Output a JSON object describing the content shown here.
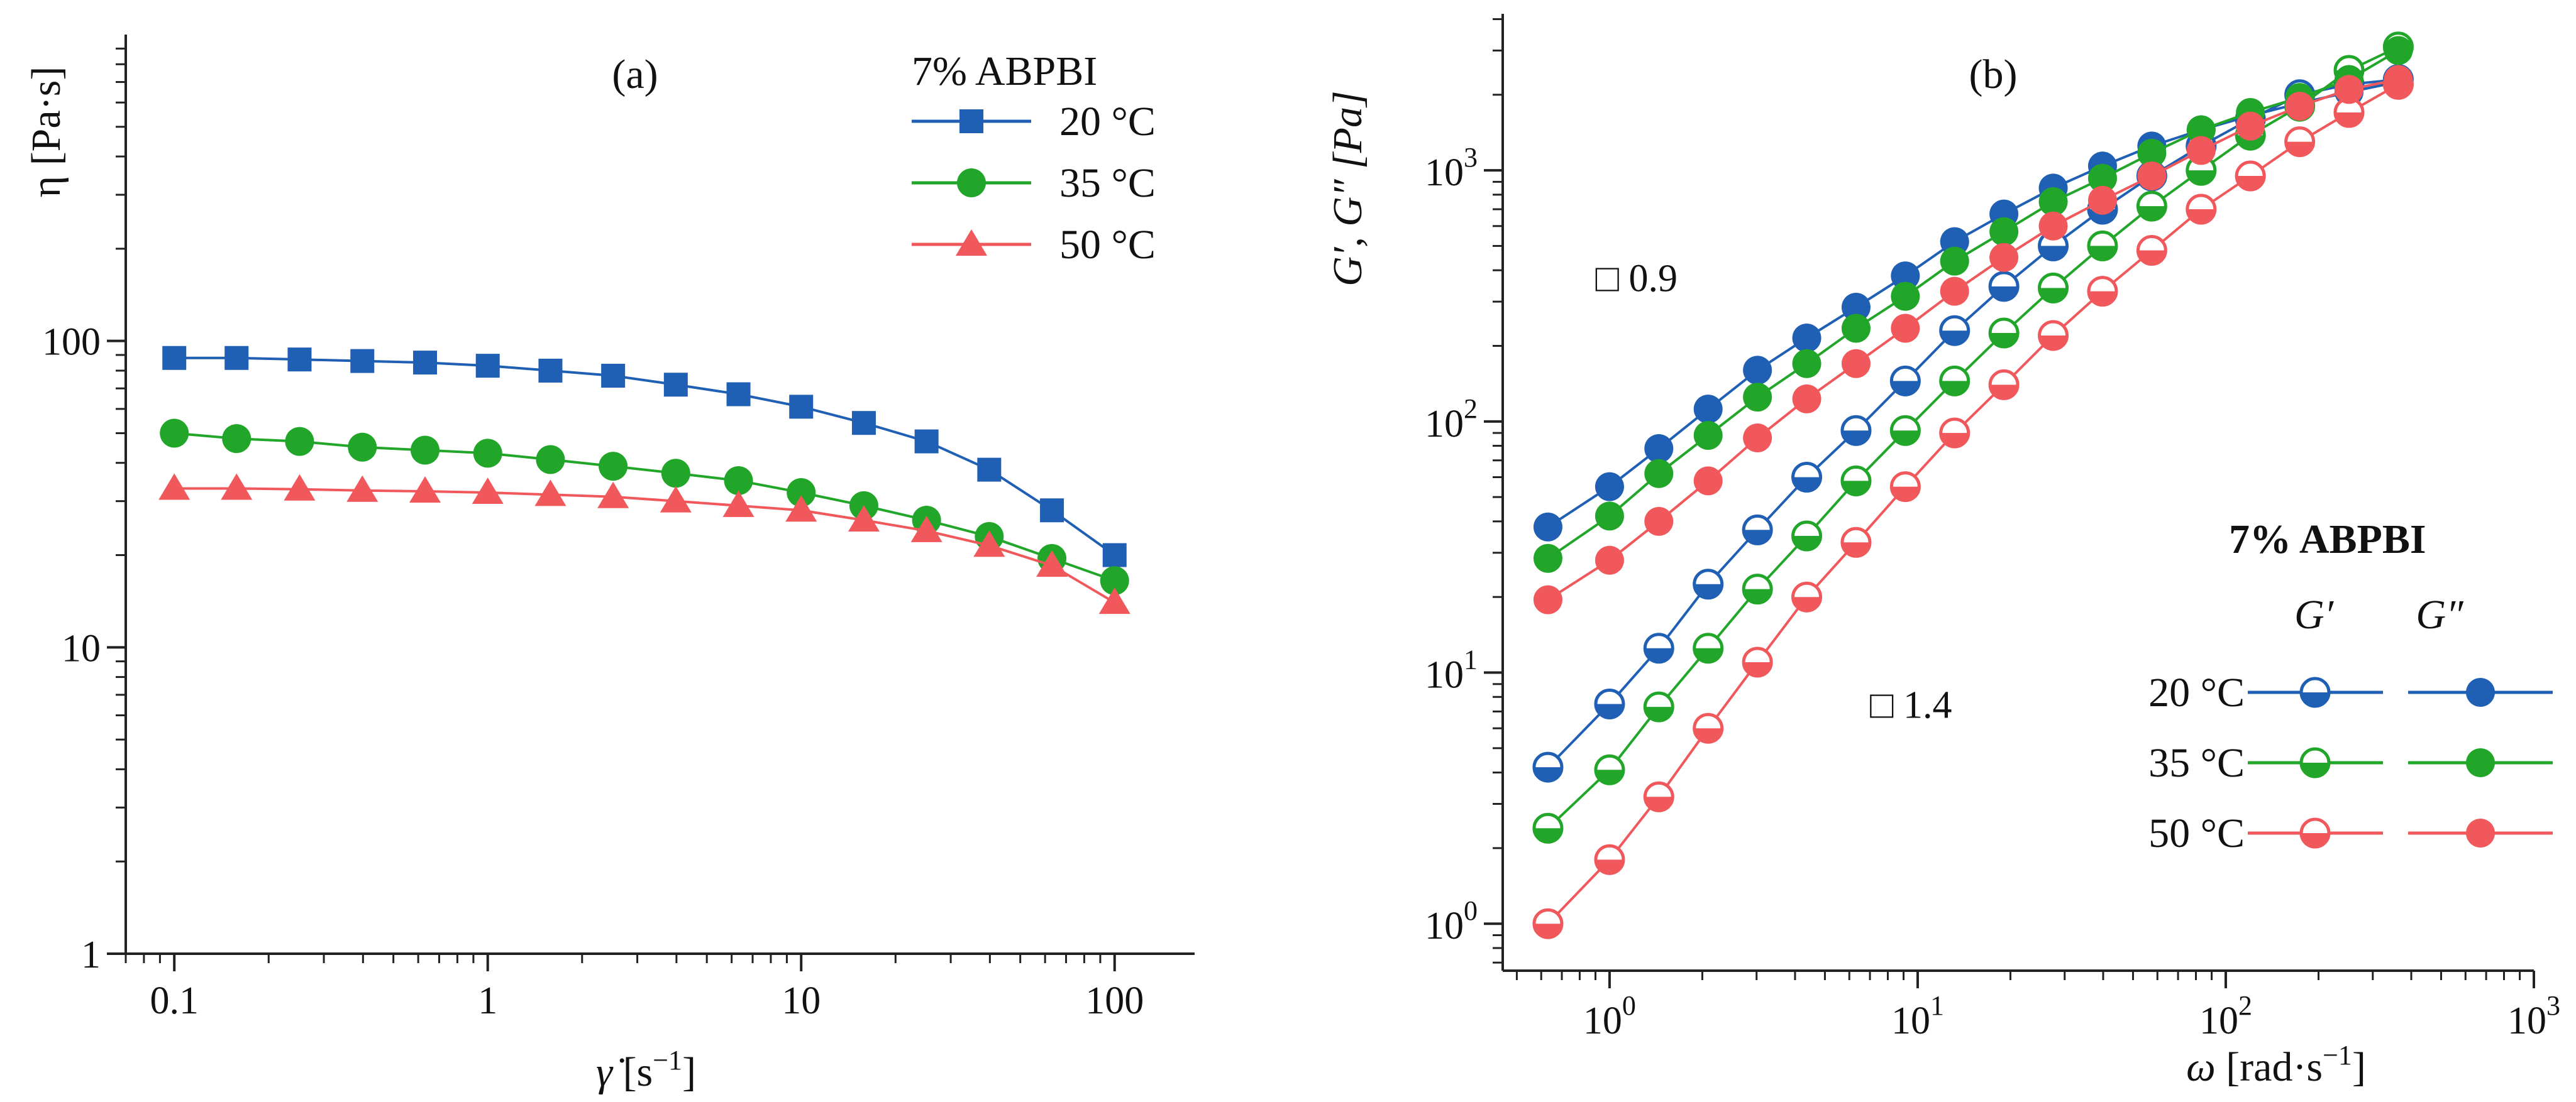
{
  "chart_data": [
    {
      "type": "line",
      "panel_label": "(a)",
      "title": "",
      "xlabel_symbol": "γ̇",
      "xlabel_unit": " [s",
      "xlabel_sup": "−1",
      "xlabel_close": "]",
      "ylabel": "η [Pa·s]",
      "xscale": "log",
      "yscale": "log",
      "xlim": [
        0.07,
        180
      ],
      "ylim": [
        1,
        1000
      ],
      "xticks": [
        0.1,
        1,
        10,
        100
      ],
      "xtick_labels": [
        "0.1",
        "1",
        "10",
        "100"
      ],
      "yticks": [
        1,
        10,
        100
      ],
      "ytick_labels": [
        "1",
        "10",
        "100"
      ],
      "legend_title": "7% ABPBI",
      "legend_position": "top-right",
      "x": [
        0.1,
        0.158,
        0.251,
        0.398,
        0.631,
        1.0,
        1.585,
        2.512,
        3.981,
        6.31,
        10.0,
        15.85,
        25.12,
        39.81,
        63.1,
        100.0
      ],
      "series": [
        {
          "name": "20 °C",
          "marker": "square",
          "color": "#1f5fb4",
          "values": [
            88,
            88,
            87,
            86,
            85,
            83,
            80,
            77,
            72,
            67,
            61,
            54,
            47,
            38,
            28,
            20
          ]
        },
        {
          "name": "35 °C",
          "marker": "circle",
          "color": "#22a62a",
          "values": [
            50,
            48,
            47,
            45,
            44,
            43,
            41,
            39,
            37,
            35,
            32,
            29,
            26,
            23,
            19.5,
            16.5
          ]
        },
        {
          "name": "50 °C",
          "marker": "triangle",
          "color": "#f0585c",
          "values": [
            33,
            33,
            32.8,
            32.5,
            32.3,
            32,
            31.5,
            31,
            30,
            29,
            28,
            26,
            24,
            21.5,
            18.5,
            14
          ]
        }
      ]
    },
    {
      "type": "line",
      "panel_label": "(b)",
      "title": "",
      "xlabel_symbol": "ω",
      "xlabel_unit": " [rad·s",
      "xlabel_sup": "−1",
      "xlabel_close": "]",
      "ylabel": "G′, G″ [Pa]",
      "xscale": "log",
      "yscale": "log",
      "xlim": [
        0.45,
        1000
      ],
      "ylim": [
        0.65,
        4200
      ],
      "xticks": [
        1,
        10,
        100,
        1000
      ],
      "yticks": [
        1,
        10,
        100,
        1000
      ],
      "tick_base": "10",
      "tick_exponents": [
        "0",
        "1",
        "2",
        "3"
      ],
      "legend_title": "7% ABPBI",
      "legend_col_storage": "G′",
      "legend_col_loss": "G″",
      "legend_position": "bottom-right",
      "annotations": [
        {
          "text": "□ 0.9",
          "at_x": 0.9,
          "at_y": 330
        },
        {
          "text": "□ 1.4",
          "at_x": 7.0,
          "at_y": 6.6
        }
      ],
      "x": [
        0.631,
        1.0,
        1.445,
        2.089,
        3.02,
        4.365,
        6.31,
        9.12,
        13.18,
        19.05,
        27.54,
        39.81,
        57.54,
        83.18,
        120.2,
        173.8,
        251.2,
        363.1
      ],
      "series": [
        {
          "name": "20 °C",
          "kind": "G′",
          "marker": "half-circle",
          "color": "#1f5fb4",
          "values": [
            4.2,
            7.5,
            12.5,
            22.5,
            37,
            60,
            92,
            145,
            230,
            345,
            500,
            700,
            950,
            1250,
            1600,
            2000,
            2200,
            2300
          ]
        },
        {
          "name": "20 °C",
          "kind": "G″",
          "marker": "circle",
          "color": "#1f5fb4",
          "values": [
            38,
            55,
            78,
            112,
            160,
            215,
            285,
            380,
            520,
            670,
            850,
            1040,
            1250,
            1450,
            1650,
            1850,
            2050,
            2250
          ]
        },
        {
          "name": "35 °C",
          "kind": "G′",
          "marker": "half-circle",
          "color": "#22a62a",
          "values": [
            2.4,
            4.1,
            7.3,
            12.5,
            21.5,
            35,
            58,
            92,
            145,
            225,
            340,
            500,
            720,
            1000,
            1380,
            1800,
            2500,
            3100
          ]
        },
        {
          "name": "35 °C",
          "kind": "G″",
          "marker": "circle",
          "color": "#22a62a",
          "values": [
            28.5,
            42,
            62,
            88,
            125,
            170,
            235,
            315,
            435,
            570,
            750,
            930,
            1170,
            1450,
            1700,
            1950,
            2300,
            3000
          ]
        },
        {
          "name": "50 °C",
          "kind": "G′",
          "marker": "half-circle",
          "color": "#f0585c",
          "values": [
            1.0,
            1.8,
            3.2,
            6.0,
            11,
            20,
            33,
            55,
            90,
            140,
            220,
            330,
            480,
            700,
            950,
            1300,
            1700,
            2200
          ]
        },
        {
          "name": "50 °C",
          "kind": "G″",
          "marker": "circle",
          "color": "#f0585c",
          "values": [
            19.5,
            28,
            40,
            58,
            86,
            123,
            170,
            235,
            330,
            450,
            600,
            760,
            950,
            1200,
            1500,
            1800,
            2100,
            2300
          ]
        }
      ]
    }
  ]
}
